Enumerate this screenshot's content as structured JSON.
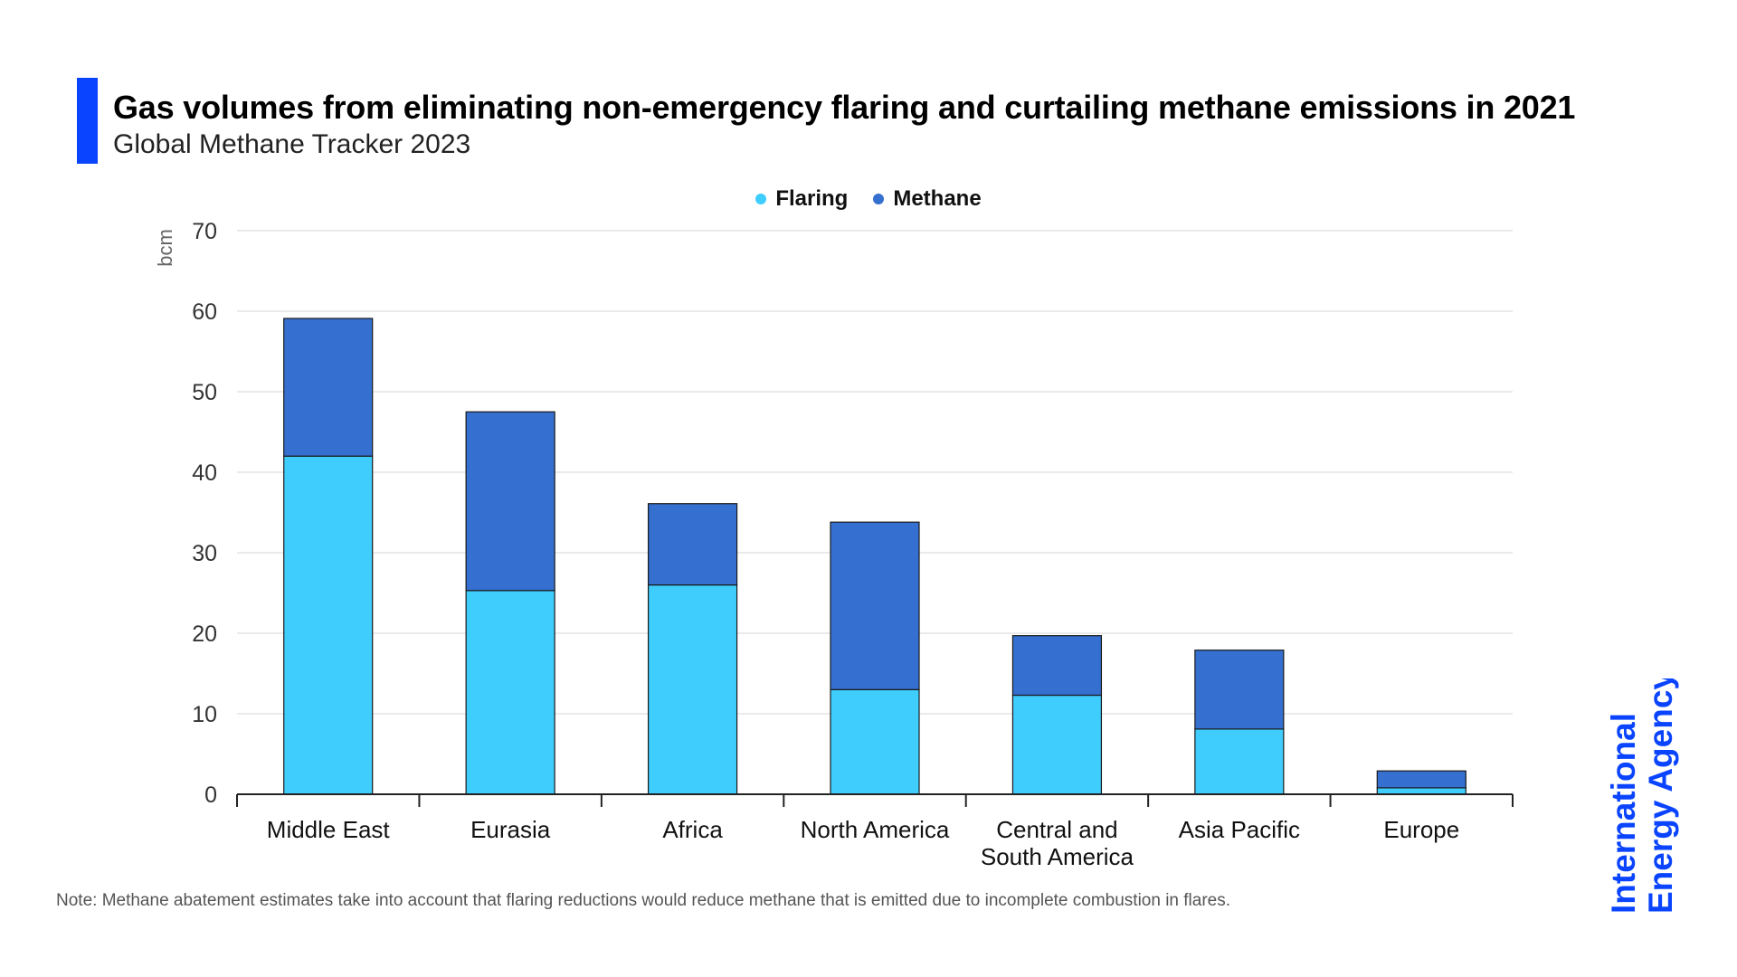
{
  "header": {
    "title": "Gas volumes from eliminating non-emergency flaring and curtailing methane emissions in 2021",
    "subtitle": "Global Methane Tracker 2023"
  },
  "legend": {
    "flaring": "Flaring",
    "methane": "Methane"
  },
  "colors": {
    "accent": "#0a44ff",
    "flaring": "#3fcdfd",
    "methane": "#356fcf",
    "grid": "#e3e3e3",
    "axis": "#222222",
    "logo": "#0a44ff"
  },
  "note": "Note: Methane abatement estimates take into account that flaring reductions would reduce methane that is emitted due to incomplete combustion in flares.",
  "logo": {
    "line1": "International",
    "line2": "Energy Agency"
  },
  "chart_data": {
    "type": "bar",
    "stacked": true,
    "title": "Gas volumes from eliminating non-emergency flaring and curtailing methane emissions in 2021",
    "subtitle": "Global Methane Tracker 2023",
    "xlabel": "",
    "ylabel": "bcm",
    "ylim": [
      0,
      70
    ],
    "yticks": [
      0,
      10,
      20,
      30,
      40,
      50,
      60,
      70
    ],
    "grid": true,
    "legend_position": "top-center",
    "categories": [
      [
        "Middle East"
      ],
      [
        "Eurasia"
      ],
      [
        "Africa"
      ],
      [
        "North America"
      ],
      [
        "Central and",
        "South America"
      ],
      [
        "Asia Pacific"
      ],
      [
        "Europe"
      ]
    ],
    "series": [
      {
        "name": "Flaring",
        "values": [
          42,
          25.3,
          26,
          13,
          12.3,
          8.1,
          0.8
        ]
      },
      {
        "name": "Methane",
        "values": [
          17.1,
          22.2,
          10.1,
          20.8,
          7.4,
          9.8,
          2.1
        ]
      }
    ]
  }
}
